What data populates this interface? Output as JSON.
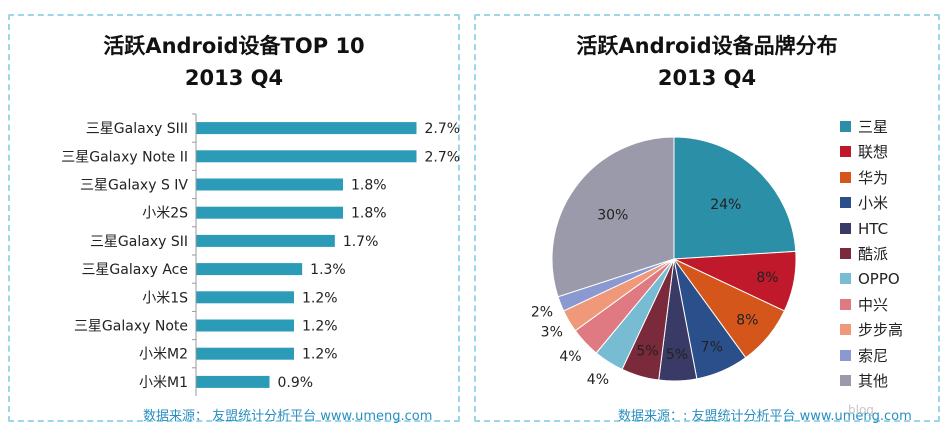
{
  "left": {
    "title_line1": "活跃Android设备TOP 10",
    "title_line2": "2013 Q4",
    "source": "数据来源： 友盟统计分析平台 www.umeng.com"
  },
  "right": {
    "title_line1": "活跃Android设备品牌分布",
    "title_line2": "2013 Q4",
    "source": "数据来源：: 友盟统计分析平台 www.umeng.com"
  },
  "watermark": "blog",
  "chart_data": [
    {
      "type": "bar",
      "orientation": "horizontal",
      "title": "活跃Android设备TOP 10 2013 Q4",
      "categories": [
        "三星Galaxy SIII",
        "三星Galaxy Note II",
        "三星Galaxy S IV",
        "小米2S",
        "三星Galaxy SII",
        "三星Galaxy Ace",
        "小米1S",
        "三星Galaxy Note",
        "小米M2",
        "小米M1"
      ],
      "values": [
        2.7,
        2.7,
        1.8,
        1.8,
        1.7,
        1.3,
        1.2,
        1.2,
        1.2,
        0.9
      ],
      "labels": [
        "2.7%",
        "2.7%",
        "1.8%",
        "1.8%",
        "1.7%",
        "1.3%",
        "1.2%",
        "1.2%",
        "1.2%",
        "0.9%"
      ],
      "color": "#2b9bb8",
      "xlim": [
        0,
        3.0
      ],
      "grid": false
    },
    {
      "type": "pie",
      "title": "活跃Android设备品牌分布 2013 Q4",
      "legend_position": "right",
      "slices": [
        {
          "name": "三星",
          "value": 24,
          "label": "24%",
          "color": "#2b8fa8"
        },
        {
          "name": "联想",
          "value": 8,
          "label": "8%",
          "color": "#c0192b"
        },
        {
          "name": "华为",
          "value": 8,
          "label": "8%",
          "color": "#d5561a"
        },
        {
          "name": "小米",
          "value": 7,
          "label": "7%",
          "color": "#2b4f8a"
        },
        {
          "name": "HTC",
          "value": 5,
          "label": "5%",
          "color": "#3a3a66"
        },
        {
          "name": "酷派",
          "value": 5,
          "label": "5%",
          "color": "#7a2a3a"
        },
        {
          "name": "OPPO",
          "value": 4,
          "label": "4%",
          "color": "#77bcd2"
        },
        {
          "name": "中兴",
          "value": 4,
          "label": "4%",
          "color": "#e07a82"
        },
        {
          "name": "步步高",
          "value": 3,
          "label": "3%",
          "color": "#f0987a"
        },
        {
          "name": "索尼",
          "value": 2,
          "label": "2%",
          "color": "#8a9ad0"
        },
        {
          "name": "其他",
          "value": 30,
          "label": "30%",
          "color": "#9a9aab"
        }
      ]
    }
  ]
}
